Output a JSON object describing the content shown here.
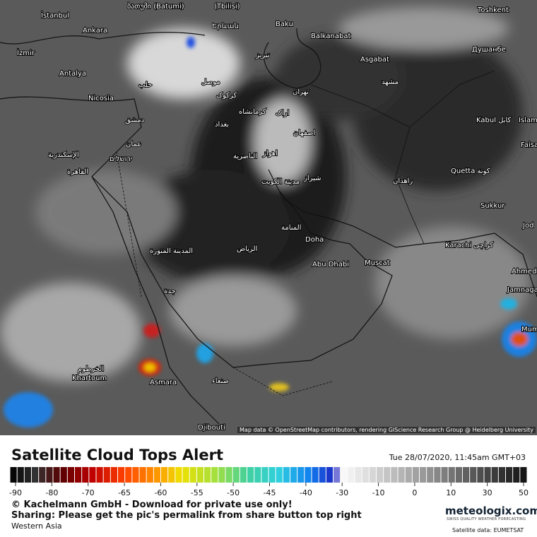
{
  "map": {
    "labels": [
      "İstanbul",
      "Ankara",
      "İzmir",
      "Antalya",
      "Nicosia",
      "ბათუმი (Batumi)",
      "(Tbilisi)",
      "Baku",
      "Balkanabat",
      "Asgabat",
      "Toshkent",
      "Душанбе",
      "Երևան",
      "تبریز",
      "حلب",
      "موصل",
      "کرکوک",
      "تهران",
      "مشهد",
      "کرمانشاه",
      "اراک",
      "دمشق",
      "بغداد",
      "اصفهان",
      "Kabul کابل",
      "Islam",
      "عمان",
      "الإسكندرية",
      "ירושלים",
      "الناصرية",
      "اهواز",
      "Faisa",
      "القاهرة",
      "مدينة الكويت",
      "شیراز",
      "زاهدان",
      "Quetta كوتة",
      "Sukkur",
      "المنامة",
      "Jod",
      "Doha",
      "Karachi کراچی",
      "المدينة المنورة",
      "الرياض",
      "Abu Dhabi",
      "Muscat",
      "Ahmed",
      "Jamnaga",
      "جدة",
      "Mum",
      "الخرطوم",
      "Khartoum",
      "صنعاء",
      "Asmara",
      "Djibouti"
    ],
    "attribution": "Map data © OpenStreetMap contributors, rendering GIScience Research Group @ Heidelberg University"
  },
  "legend": {
    "title": "Satellite Cloud Tops Alert",
    "timestamp": "Tue 28/07/2020, 11:45am GMT+03",
    "ticks": [
      -90,
      -80,
      -70,
      -65,
      -60,
      -55,
      -50,
      -45,
      -40,
      -30,
      -10,
      0,
      10,
      30,
      50
    ]
  },
  "footer": {
    "copyright": "© Kachelmann GmbH - Download for private use only!",
    "sharing": "Sharing: Please get the pic's permalink from share button top right",
    "region": "Western Asia",
    "brand": "meteologix.com",
    "slogan": "SWISS QUALITY WEATHER FORECASTING",
    "source": "Satellite data: EUMETSAT"
  }
}
